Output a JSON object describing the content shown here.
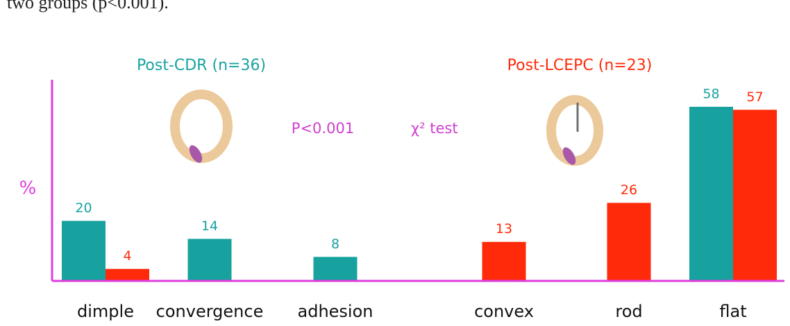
{
  "page_text": "two groups (p<0.001).",
  "chart_data": {
    "type": "bar",
    "categories": [
      "dimple",
      "convergence",
      "adhesion",
      "convex",
      "rod",
      "flat"
    ],
    "series": [
      {
        "name": "Post-CDR (n=36)",
        "color": "#17a2a0",
        "values": [
          20,
          14,
          8,
          null,
          null,
          58
        ]
      },
      {
        "name": "Post-LCEPC (n=23)",
        "color": "#ff2a0a",
        "values": [
          4,
          null,
          null,
          13,
          26,
          57
        ]
      }
    ],
    "ylabel": "%",
    "annotations": [
      "P<0.001",
      "χ² test"
    ],
    "ylim": [
      0,
      67
    ],
    "axis_color": "#e03ce0"
  }
}
